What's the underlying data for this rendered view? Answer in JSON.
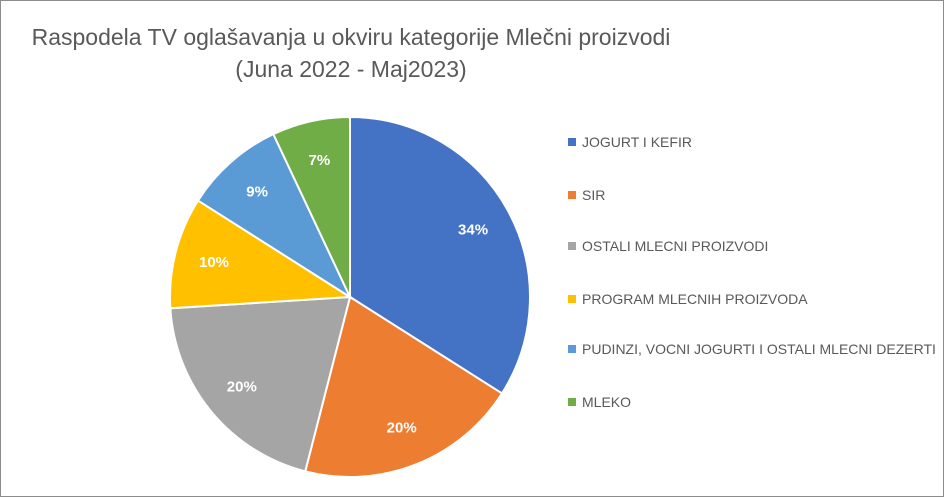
{
  "chart_data": {
    "type": "pie",
    "title": "Raspodela TV oglašavanja u okviru kategorije Mlečni proizvodi",
    "subtitle": "(Juna 2022 - Maj2023)",
    "legend_position": "right",
    "slices": [
      {
        "name": "JOGURT I KEFIR",
        "value": 34,
        "label": "34%",
        "color": "#4472C4"
      },
      {
        "name": "SIR",
        "value": 20,
        "label": "20%",
        "color": "#ED7D31"
      },
      {
        "name": "OSTALI MLECNI PROIZVODI",
        "value": 20,
        "label": "20%",
        "color": "#A5A5A5"
      },
      {
        "name": "PROGRAM MLECNIH PROIZVODA",
        "value": 10,
        "label": "10%",
        "color": "#FFC000"
      },
      {
        "name": "PUDINZI, VOCNI JOGURTI I OSTALI MLECNI DEZERTI",
        "value": 9,
        "label": "9%",
        "color": "#5B9BD5"
      },
      {
        "name": "MLEKO",
        "value": 7,
        "label": "7%",
        "color": "#70AD47"
      }
    ]
  }
}
